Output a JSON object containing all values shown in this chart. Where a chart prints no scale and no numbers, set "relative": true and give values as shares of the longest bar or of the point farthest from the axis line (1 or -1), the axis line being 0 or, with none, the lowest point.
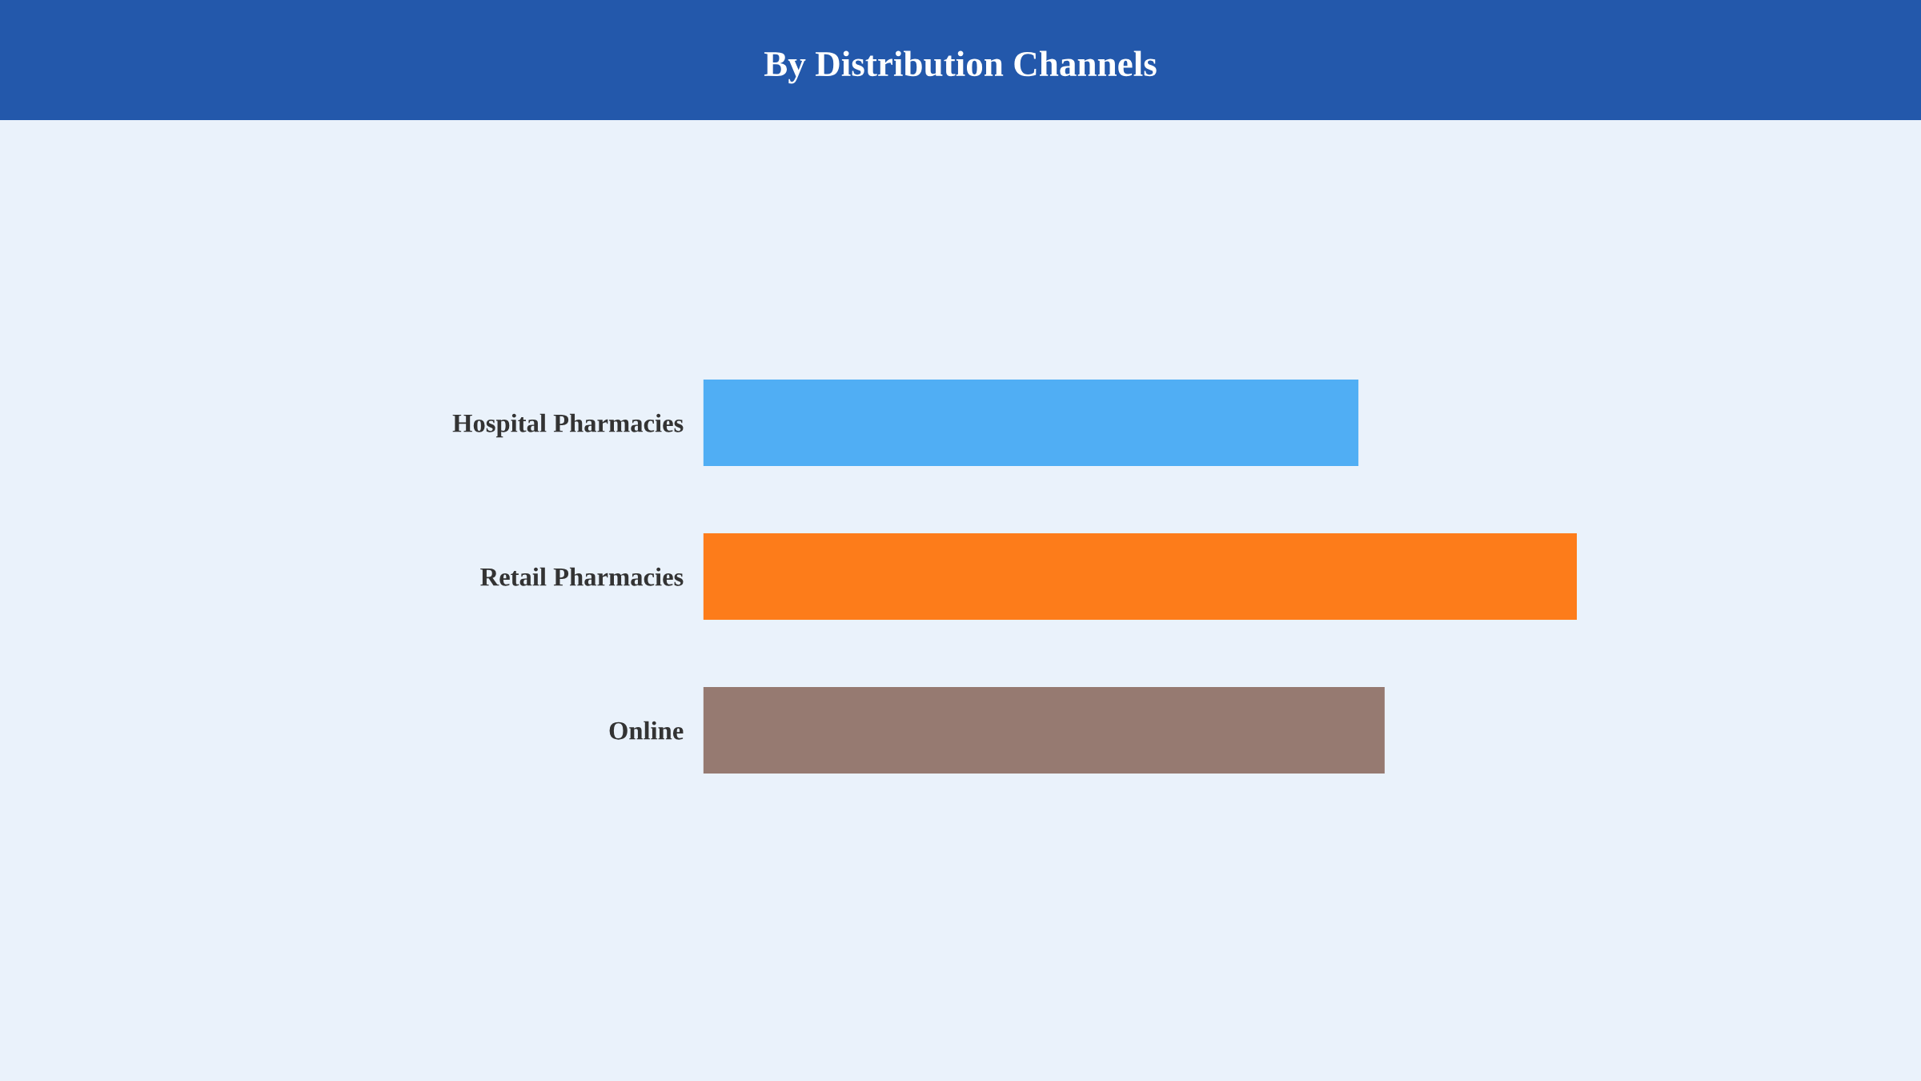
{
  "chart_data": {
    "type": "bar",
    "title": "By Distribution Channels",
    "orientation": "horizontal",
    "relative": true,
    "tick_labels": "y",
    "categories": [
      "Hospital Pharmacies",
      "Retail Pharmacies",
      "Online"
    ],
    "values": [
      0.75,
      1,
      0.78
    ],
    "colors": [
      "#50aef4",
      "#fd7c1a",
      "#967a71"
    ]
  }
}
